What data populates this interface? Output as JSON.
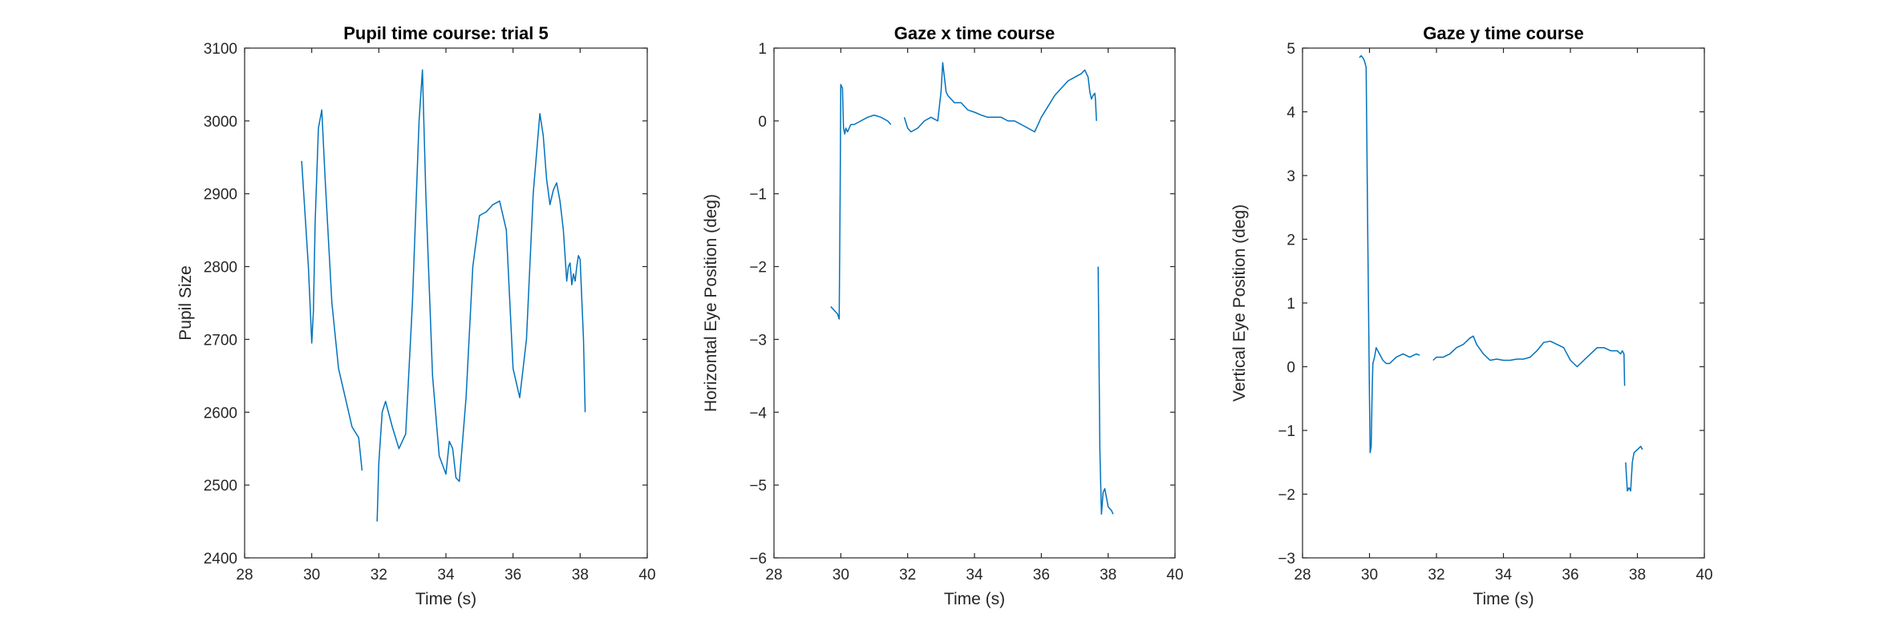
{
  "figure": {
    "background": "#ffffff",
    "line_color": "#0072BD",
    "axis_color": "#262626"
  },
  "chart_data": [
    {
      "type": "line",
      "title": "Pupil time course: trial 5",
      "xlabel": "Time (s)",
      "ylabel": "Pupil Size",
      "xlim": [
        28,
        40
      ],
      "ylim": [
        2400,
        3100
      ],
      "xticks": [
        28,
        30,
        32,
        34,
        36,
        38,
        40
      ],
      "yticks": [
        2400,
        2500,
        2600,
        2700,
        2800,
        2900,
        3000,
        3100
      ],
      "grid": false,
      "series": [
        {
          "color": "#0072BD",
          "segments": [
            {
              "x": [
                29.7,
                29.9,
                30.0,
                30.05,
                30.1,
                30.2,
                30.3,
                30.4,
                30.6,
                30.8,
                31.0,
                31.2,
                31.4,
                31.5
              ],
              "y": [
                2945,
                2800,
                2695,
                2740,
                2860,
                2990,
                3015,
                2920,
                2750,
                2660,
                2620,
                2580,
                2565,
                2520
              ]
            },
            {
              "x": [
                31.95,
                32.0,
                32.1,
                32.2,
                32.4,
                32.6,
                32.8,
                33.0,
                33.2,
                33.3,
                33.4,
                33.6,
                33.8,
                34.0,
                34.1,
                34.2,
                34.3,
                34.4,
                34.6,
                34.8,
                35.0,
                35.2,
                35.4,
                35.6,
                35.8,
                36.0,
                36.2,
                36.4,
                36.6,
                36.8,
                36.9,
                37.0,
                37.1,
                37.2,
                37.3,
                37.4,
                37.5,
                37.6,
                37.65,
                37.7,
                37.75,
                37.8,
                37.85,
                37.9,
                37.95,
                38.0,
                38.1,
                38.15
              ],
              "y": [
                2450,
                2530,
                2600,
                2615,
                2580,
                2550,
                2570,
                2750,
                3000,
                3070,
                2900,
                2650,
                2540,
                2515,
                2560,
                2550,
                2510,
                2505,
                2620,
                2800,
                2870,
                2875,
                2885,
                2890,
                2850,
                2660,
                2620,
                2700,
                2900,
                3010,
                2980,
                2920,
                2885,
                2905,
                2915,
                2890,
                2850,
                2780,
                2800,
                2805,
                2775,
                2790,
                2780,
                2800,
                2815,
                2810,
                2700,
                2600
              ]
            }
          ]
        }
      ]
    },
    {
      "type": "line",
      "title": "Gaze x time course",
      "xlabel": "Time (s)",
      "ylabel": "Horizontal Eye Position (deg)",
      "xlim": [
        28,
        40
      ],
      "ylim": [
        -6,
        1
      ],
      "xticks": [
        28,
        30,
        32,
        34,
        36,
        38,
        40
      ],
      "yticks": [
        -6,
        -5,
        -4,
        -3,
        -2,
        -1,
        0,
        1
      ],
      "grid": false,
      "series": [
        {
          "color": "#0072BD",
          "segments": [
            {
              "x": [
                29.7,
                29.8,
                29.9,
                29.95,
                29.98,
                30.0,
                30.05,
                30.08,
                30.12,
                30.15,
                30.2,
                30.3,
                30.4,
                30.6,
                30.8,
                31.0,
                31.2,
                31.4,
                31.5
              ],
              "y": [
                -2.55,
                -2.6,
                -2.65,
                -2.72,
                -1.0,
                0.5,
                0.45,
                -0.1,
                -0.18,
                -0.1,
                -0.15,
                -0.05,
                -0.05,
                0.0,
                0.05,
                0.08,
                0.05,
                0.0,
                -0.05
              ]
            },
            {
              "x": [
                31.9,
                32.0,
                32.1,
                32.3,
                32.5,
                32.7,
                32.9,
                33.0,
                33.05,
                33.1,
                33.15,
                33.2,
                33.4,
                33.6,
                33.8,
                34.0,
                34.2,
                34.4,
                34.6,
                34.8,
                35.0,
                35.2,
                35.4,
                35.6,
                35.8,
                35.9,
                36.0,
                36.2,
                36.4,
                36.6,
                36.8,
                37.0,
                37.2,
                37.3,
                37.4,
                37.45,
                37.5,
                37.55,
                37.6,
                37.62,
                37.65
              ],
              "y": [
                0.05,
                -0.1,
                -0.15,
                -0.1,
                0.0,
                0.05,
                0.0,
                0.4,
                0.8,
                0.6,
                0.4,
                0.35,
                0.25,
                0.25,
                0.15,
                0.12,
                0.08,
                0.05,
                0.05,
                0.05,
                0.0,
                0.0,
                -0.05,
                -0.1,
                -0.15,
                -0.05,
                0.05,
                0.2,
                0.35,
                0.45,
                0.55,
                0.6,
                0.65,
                0.7,
                0.6,
                0.4,
                0.3,
                0.35,
                0.38,
                0.3,
                0.0
              ]
            },
            {
              "x": [
                37.7,
                37.75,
                37.8,
                37.85,
                37.9,
                38.0,
                38.1,
                38.15
              ],
              "y": [
                -2.0,
                -4.5,
                -5.4,
                -5.1,
                -5.05,
                -5.3,
                -5.35,
                -5.4
              ]
            }
          ]
        }
      ]
    },
    {
      "type": "line",
      "title": "Gaze y time course",
      "xlabel": "Time (s)",
      "ylabel": "Vertical Eye Position (deg)",
      "xlim": [
        28,
        40
      ],
      "ylim": [
        -3,
        5
      ],
      "xticks": [
        28,
        30,
        32,
        34,
        36,
        38,
        40
      ],
      "yticks": [
        -3,
        -2,
        -1,
        0,
        1,
        2,
        3,
        4,
        5
      ],
      "grid": false,
      "series": [
        {
          "color": "#0072BD",
          "segments": [
            {
              "x": [
                29.7,
                29.75,
                29.8,
                29.85,
                29.9,
                29.95,
                30.0,
                30.02,
                30.05,
                30.08,
                30.1,
                30.15,
                30.2,
                30.3,
                30.4,
                30.5,
                30.6,
                30.8,
                31.0,
                31.2,
                31.4,
                31.5
              ],
              "y": [
                4.85,
                4.88,
                4.85,
                4.8,
                4.7,
                2.0,
                -0.5,
                -1.35,
                -1.25,
                -0.4,
                0.05,
                0.15,
                0.3,
                0.2,
                0.1,
                0.05,
                0.05,
                0.15,
                0.2,
                0.15,
                0.2,
                0.18
              ]
            },
            {
              "x": [
                31.9,
                32.0,
                32.2,
                32.4,
                32.6,
                32.8,
                33.0,
                33.1,
                33.2,
                33.4,
                33.6,
                33.8,
                34.0,
                34.2,
                34.4,
                34.6,
                34.8,
                35.0,
                35.2,
                35.4,
                35.6,
                35.8,
                36.0,
                36.2,
                36.4,
                36.6,
                36.8,
                37.0,
                37.2,
                37.4,
                37.5,
                37.55,
                37.6,
                37.62
              ],
              "y": [
                0.1,
                0.15,
                0.15,
                0.2,
                0.3,
                0.35,
                0.45,
                0.48,
                0.35,
                0.2,
                0.1,
                0.12,
                0.1,
                0.1,
                0.12,
                0.12,
                0.15,
                0.25,
                0.38,
                0.4,
                0.35,
                0.3,
                0.1,
                0.0,
                0.1,
                0.2,
                0.3,
                0.3,
                0.25,
                0.25,
                0.2,
                0.25,
                0.2,
                -0.3
              ]
            },
            {
              "x": [
                37.65,
                37.7,
                37.75,
                37.8,
                37.85,
                37.9,
                38.0,
                38.1,
                38.15
              ],
              "y": [
                -1.5,
                -1.95,
                -1.9,
                -1.95,
                -1.5,
                -1.35,
                -1.3,
                -1.25,
                -1.3
              ]
            }
          ]
        }
      ]
    }
  ]
}
